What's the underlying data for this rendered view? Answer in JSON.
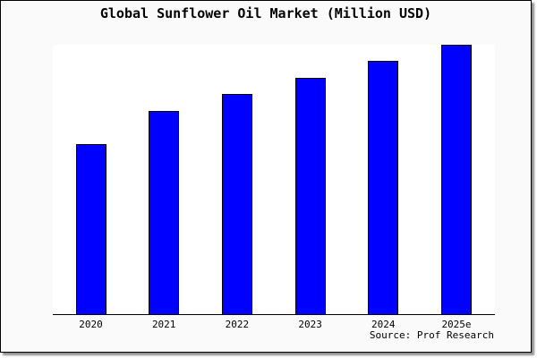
{
  "chart_data": {
    "type": "bar",
    "title": "Global Sunflower Oil Market (Million USD)",
    "categories": [
      "2020",
      "2021",
      "2022",
      "2023",
      "2024",
      "2025e"
    ],
    "values": [
      63,
      75.3,
      81.7,
      87.7,
      94,
      100
    ],
    "values_note": "Y-axis has no ticks, labels or gridlines; values are relative bar heights as percent of the tallest bar (2025e = 100).",
    "xlabel": "",
    "ylabel": "",
    "legend": "none",
    "grid": false,
    "source": "Source: Prof Research",
    "colors": {
      "bar_fill": "#0000ff",
      "bar_border": "#000000",
      "plot_bg": "#ffffff",
      "frame_bg": "#fafafa",
      "text": "#000000"
    }
  }
}
